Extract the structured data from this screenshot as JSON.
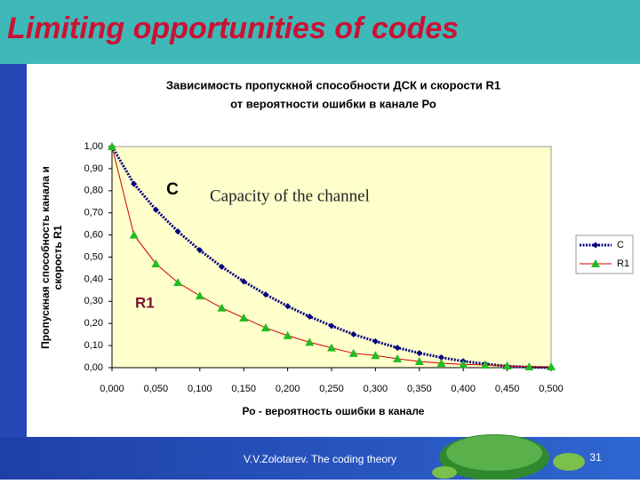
{
  "slide": {
    "title": "Limiting opportunities of codes",
    "footer": "V.V.Zolotarev. The coding theory",
    "page": "31"
  },
  "chart_data": {
    "type": "line",
    "title": [
      "Зависимость пропускной  способности  ДСК  и  скорости  R1",
      "от вероятности ошибки в канале Ро"
    ],
    "x_label": "Ро - вероятность ошибки в канале",
    "y_label": [
      "Пропускная способность канала и",
      "скорость R1"
    ],
    "annotations": [
      "C",
      "Capacity of the channel",
      "R1"
    ],
    "x": [
      0,
      0.025,
      0.05,
      0.075,
      0.1,
      0.125,
      0.15,
      0.175,
      0.2,
      0.225,
      0.25,
      0.275,
      0.3,
      0.325,
      0.35,
      0.375,
      0.4,
      0.425,
      0.45,
      0.475,
      0.5
    ],
    "series": [
      {
        "name": "C",
        "color": "#000080",
        "marker": "diamond",
        "marker_color": "#000080",
        "line_style": "dotted",
        "values": [
          1,
          0.831,
          0.714,
          0.616,
          0.531,
          0.456,
          0.39,
          0.331,
          0.278,
          0.231,
          0.189,
          0.151,
          0.119,
          0.09,
          0.066,
          0.046,
          0.029,
          0.017,
          0.007,
          0.002,
          0
        ]
      },
      {
        "name": "R1",
        "color": "#cc0000",
        "marker": "triangle",
        "marker_color": "#22bb22",
        "line_style": "solid",
        "values": [
          1,
          0.6,
          0.47,
          0.385,
          0.325,
          0.27,
          0.225,
          0.18,
          0.145,
          0.115,
          0.09,
          0.065,
          0.055,
          0.04,
          0.028,
          0.02,
          0.015,
          0.012,
          0.008,
          0.004,
          0.004
        ]
      }
    ],
    "xlim": [
      0,
      0.5
    ],
    "xticks": [
      {
        "value": 0,
        "label": "0,000"
      },
      {
        "value": 0.05,
        "label": "0,050"
      },
      {
        "value": 0.1,
        "label": "0,100"
      },
      {
        "value": 0.15,
        "label": "0,150"
      },
      {
        "value": 0.2,
        "label": "0,200"
      },
      {
        "value": 0.25,
        "label": "0,250"
      },
      {
        "value": 0.3,
        "label": "0,300"
      },
      {
        "value": 0.35,
        "label": "0,350"
      },
      {
        "value": 0.4,
        "label": "0,400"
      },
      {
        "value": 0.45,
        "label": "0,450"
      },
      {
        "value": 0.5,
        "label": "0,500"
      }
    ],
    "ylim": [
      0,
      1
    ],
    "yticks": [
      {
        "value": 0,
        "label": "0,00"
      },
      {
        "value": 0.1,
        "label": "0,10"
      },
      {
        "value": 0.2,
        "label": "0,20"
      },
      {
        "value": 0.3,
        "label": "0,30"
      },
      {
        "value": 0.4,
        "label": "0,40"
      },
      {
        "value": 0.5,
        "label": "0,50"
      },
      {
        "value": 0.6,
        "label": "0,60"
      },
      {
        "value": 0.7,
        "label": "0,70"
      },
      {
        "value": 0.8,
        "label": "0,80"
      },
      {
        "value": 0.9,
        "label": "0,90"
      },
      {
        "value": 1,
        "label": "1,00"
      }
    ],
    "legend": "right",
    "plot_background": "#ffffcc"
  }
}
